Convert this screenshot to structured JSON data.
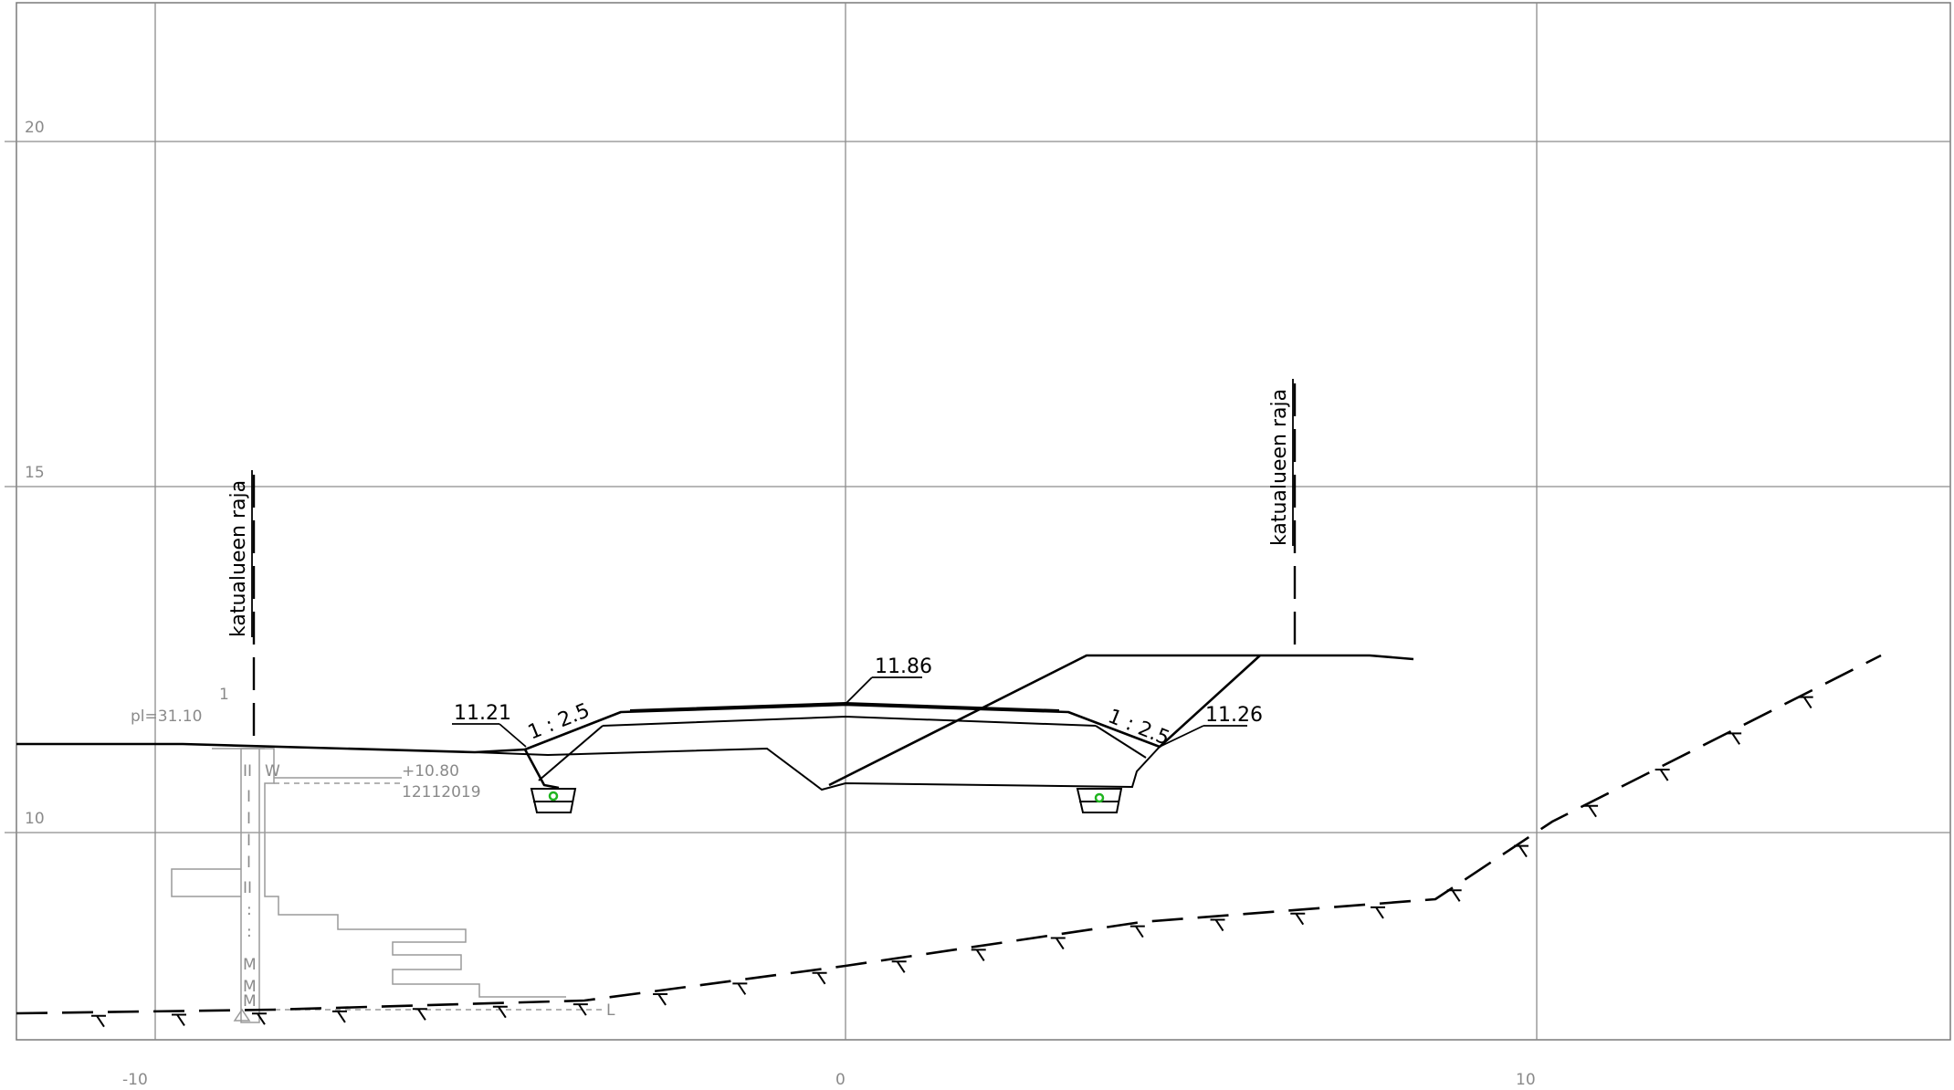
{
  "x_axis": {
    "labels": [
      "-10",
      "0",
      "10"
    ],
    "values": [
      -10,
      0,
      10
    ]
  },
  "y_axis": {
    "labels": [
      "20",
      "15",
      "10"
    ],
    "values": [
      20,
      15,
      10
    ]
  },
  "boundary_left": {
    "label": "katualueen raja"
  },
  "boundary_right": {
    "label": "katualueen raja"
  },
  "elevations": {
    "left_edge": "11.21",
    "centerline": "11.86",
    "right_edge": "11.26"
  },
  "slopes": {
    "left": "1 : 2.5",
    "right": "1 : 2.5"
  },
  "borehole": {
    "ground_level": "pl=31.10",
    "top_mark": "1",
    "water_level": "+10.80",
    "date": "12112019",
    "sample_marks": [
      "W",
      "II",
      "I",
      "I",
      "I",
      "I",
      "II",
      ":",
      ":",
      "M",
      "M",
      "M"
    ],
    "end_mark": "L"
  },
  "colors": {
    "grid": "#8c8c8c",
    "linework": "#000000",
    "pipe": "#1fb41f",
    "borehole": "#9a9a9a"
  },
  "icons": {
    "pipe": "circle-icon",
    "bedrock": "rock-symbol-icon",
    "borehole_base": "triangle-icon"
  }
}
